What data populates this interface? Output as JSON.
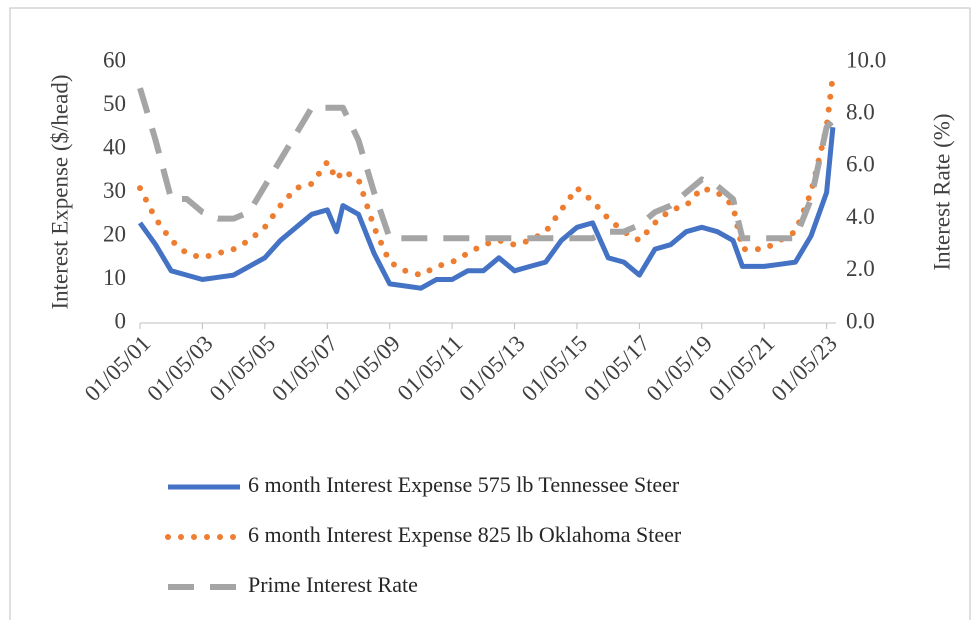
{
  "chart_data": {
    "type": "line",
    "ylabel": "Interest Expense ($/head)",
    "y2label": "Interest Rate (%)",
    "x": [
      2001.0,
      2001.5,
      2002.0,
      2002.5,
      2003.0,
      2003.5,
      2004.0,
      2004.5,
      2005.0,
      2005.5,
      2006.0,
      2006.5,
      2007.0,
      2007.3,
      2007.5,
      2008.0,
      2008.5,
      2009.0,
      2009.5,
      2010.0,
      2010.5,
      2011.0,
      2011.5,
      2012.0,
      2012.5,
      2013.0,
      2013.5,
      2014.0,
      2014.5,
      2015.0,
      2015.5,
      2016.0,
      2016.5,
      2017.0,
      2017.5,
      2018.0,
      2018.5,
      2019.0,
      2019.5,
      2020.0,
      2020.3,
      2021.0,
      2021.5,
      2022.0,
      2022.5,
      2023.0,
      2023.2
    ],
    "series": [
      {
        "name": "6 month Interest Expense 575 lb Tennessee Steer",
        "color": "#4472c4",
        "style": "solid",
        "values": [
          23,
          18,
          12,
          11,
          10,
          10.5,
          11,
          13,
          15,
          19,
          22,
          25,
          26,
          21,
          27,
          25,
          16,
          9,
          8.5,
          8,
          10,
          10,
          12,
          12,
          15,
          12,
          13,
          14,
          19,
          22,
          23,
          15,
          14,
          11,
          17,
          18,
          21,
          22,
          21,
          19,
          13,
          13,
          13.5,
          14,
          20,
          30,
          45
        ]
      },
      {
        "name": "6 month Interest Expense 825 lb Oklahoma Steer",
        "color": "#ed7d31",
        "style": "dotted",
        "values": [
          31,
          24,
          19,
          16,
          15,
          16,
          17,
          19,
          22,
          27,
          31,
          32,
          37,
          33,
          35,
          33,
          22,
          14,
          12,
          11,
          13,
          14,
          16,
          18,
          19,
          18,
          19,
          21,
          26,
          31,
          28,
          24,
          21,
          19,
          23,
          26,
          27,
          31,
          30,
          27,
          17,
          17,
          19,
          21,
          30,
          45,
          57
        ]
      },
      {
        "name": "Prime Interest Rate",
        "color": "#a5a5a5",
        "style": "dashed",
        "axis": "y2",
        "values": [
          9.0,
          7.0,
          4.75,
          4.75,
          4.25,
          4.0,
          4.0,
          4.25,
          5.25,
          6.25,
          7.25,
          8.25,
          8.25,
          8.25,
          8.25,
          7.0,
          5.0,
          3.25,
          3.25,
          3.25,
          3.25,
          3.25,
          3.25,
          3.25,
          3.25,
          3.25,
          3.25,
          3.25,
          3.25,
          3.25,
          3.25,
          3.5,
          3.5,
          3.75,
          4.25,
          4.5,
          5.0,
          5.5,
          5.25,
          4.75,
          3.25,
          3.25,
          3.25,
          3.25,
          4.75,
          7.5,
          7.75
        ]
      }
    ],
    "xlim": [
      2001,
      2023.3
    ],
    "xticks": [
      {
        "value": 2001,
        "label": "01/05/01"
      },
      {
        "value": 2003,
        "label": "01/05/03"
      },
      {
        "value": 2005,
        "label": "01/05/05"
      },
      {
        "value": 2007,
        "label": "01/05/07"
      },
      {
        "value": 2009,
        "label": "01/05/09"
      },
      {
        "value": 2011,
        "label": "01/05/11"
      },
      {
        "value": 2013,
        "label": "01/05/13"
      },
      {
        "value": 2015,
        "label": "01/05/15"
      },
      {
        "value": 2017,
        "label": "01/05/17"
      },
      {
        "value": 2019,
        "label": "01/05/19"
      },
      {
        "value": 2021,
        "label": "01/05/21"
      },
      {
        "value": 2023,
        "label": "01/05/23"
      }
    ],
    "ylim": [
      0,
      60
    ],
    "yticks": [
      0,
      10,
      20,
      30,
      40,
      50,
      60
    ],
    "y2lim": [
      0,
      10
    ],
    "y2ticks": [
      {
        "value": 0,
        "label": "0.0"
      },
      {
        "value": 2,
        "label": "2.0"
      },
      {
        "value": 4,
        "label": "4.0"
      },
      {
        "value": 6,
        "label": "6.0"
      },
      {
        "value": 8,
        "label": "8.0"
      },
      {
        "value": 10,
        "label": "10.0"
      }
    ],
    "legend": "bottom"
  }
}
